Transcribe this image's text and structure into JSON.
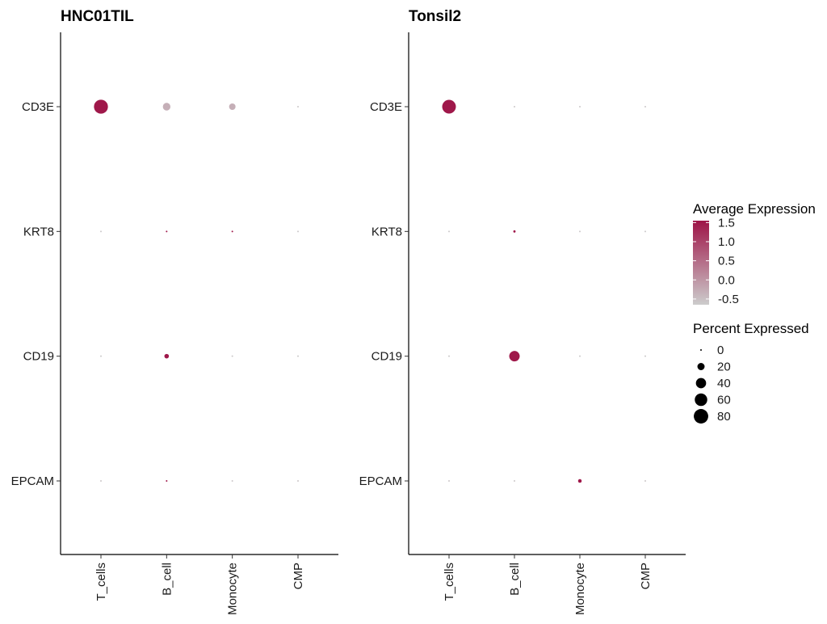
{
  "chart_data": [
    {
      "type": "scatter",
      "subtype": "dot-plot",
      "title": "HNC01TIL",
      "categories": [
        "T_cells",
        "B_cell",
        "Monocyte",
        "CMP"
      ],
      "genes": [
        "CD3E",
        "KRT8",
        "CD19",
        "EPCAM"
      ],
      "points": [
        {
          "gene": "CD3E",
          "cell": "T_cells",
          "pct": 75,
          "avg": 1.5
        },
        {
          "gene": "CD3E",
          "cell": "B_cell",
          "pct": 22,
          "avg": -0.3
        },
        {
          "gene": "CD3E",
          "cell": "Monocyte",
          "pct": 16,
          "avg": -0.3
        },
        {
          "gene": "CD3E",
          "cell": "CMP",
          "pct": 1,
          "avg": -0.6
        },
        {
          "gene": "KRT8",
          "cell": "T_cells",
          "pct": 1,
          "avg": -0.6
        },
        {
          "gene": "KRT8",
          "cell": "B_cell",
          "pct": 1,
          "avg": 1.5
        },
        {
          "gene": "KRT8",
          "cell": "Monocyte",
          "pct": 1,
          "avg": 1.5
        },
        {
          "gene": "KRT8",
          "cell": "CMP",
          "pct": 1,
          "avg": -0.6
        },
        {
          "gene": "CD19",
          "cell": "T_cells",
          "pct": 1,
          "avg": -0.6
        },
        {
          "gene": "CD19",
          "cell": "B_cell",
          "pct": 8,
          "avg": 1.5
        },
        {
          "gene": "CD19",
          "cell": "Monocyte",
          "pct": 1,
          "avg": -0.6
        },
        {
          "gene": "CD19",
          "cell": "CMP",
          "pct": 1,
          "avg": -0.6
        },
        {
          "gene": "EPCAM",
          "cell": "T_cells",
          "pct": 1,
          "avg": -0.6
        },
        {
          "gene": "EPCAM",
          "cell": "B_cell",
          "pct": 1,
          "avg": 1.5
        },
        {
          "gene": "EPCAM",
          "cell": "Monocyte",
          "pct": 1,
          "avg": -0.6
        },
        {
          "gene": "EPCAM",
          "cell": "CMP",
          "pct": 1,
          "avg": -0.6
        }
      ]
    },
    {
      "type": "scatter",
      "subtype": "dot-plot",
      "title": "Tonsil2",
      "categories": [
        "T_cells",
        "B_cell",
        "Monocyte",
        "CMP"
      ],
      "genes": [
        "CD3E",
        "KRT8",
        "CD19",
        "EPCAM"
      ],
      "points": [
        {
          "gene": "CD3E",
          "cell": "T_cells",
          "pct": 72,
          "avg": 1.5
        },
        {
          "gene": "CD3E",
          "cell": "B_cell",
          "pct": 1,
          "avg": -0.6
        },
        {
          "gene": "CD3E",
          "cell": "Monocyte",
          "pct": 1,
          "avg": -0.6
        },
        {
          "gene": "CD3E",
          "cell": "CMP",
          "pct": 1,
          "avg": -0.6
        },
        {
          "gene": "KRT8",
          "cell": "T_cells",
          "pct": 1,
          "avg": -0.6
        },
        {
          "gene": "KRT8",
          "cell": "B_cell",
          "pct": 2,
          "avg": 1.5
        },
        {
          "gene": "KRT8",
          "cell": "Monocyte",
          "pct": 1,
          "avg": -0.6
        },
        {
          "gene": "KRT8",
          "cell": "CMP",
          "pct": 1,
          "avg": -0.6
        },
        {
          "gene": "CD19",
          "cell": "T_cells",
          "pct": 1,
          "avg": -0.6
        },
        {
          "gene": "CD19",
          "cell": "B_cell",
          "pct": 42,
          "avg": 1.5
        },
        {
          "gene": "CD19",
          "cell": "Monocyte",
          "pct": 1,
          "avg": -0.6
        },
        {
          "gene": "CD19",
          "cell": "CMP",
          "pct": 1,
          "avg": -0.6
        },
        {
          "gene": "EPCAM",
          "cell": "T_cells",
          "pct": 1,
          "avg": -0.6
        },
        {
          "gene": "EPCAM",
          "cell": "B_cell",
          "pct": 1,
          "avg": -0.6
        },
        {
          "gene": "EPCAM",
          "cell": "Monocyte",
          "pct": 5,
          "avg": 1.5
        },
        {
          "gene": "EPCAM",
          "cell": "CMP",
          "pct": 1,
          "avg": -0.6
        }
      ]
    }
  ],
  "legend": {
    "color": {
      "title": "Average Expression",
      "ticks": [
        "1.5",
        "1.0",
        "0.5",
        "0.0",
        "-0.5"
      ],
      "tick_values": [
        1.5,
        1.0,
        0.5,
        0.0,
        -0.5
      ],
      "range": [
        -0.65,
        1.55
      ],
      "low_color": "#cccccc",
      "high_color": "#9e1447"
    },
    "size": {
      "title": "Percent Expressed",
      "values": [
        0,
        20,
        40,
        60,
        80
      ],
      "labels": [
        "0",
        "20",
        "40",
        "60",
        "80"
      ],
      "color": "#000000"
    },
    "placement": "right"
  }
}
